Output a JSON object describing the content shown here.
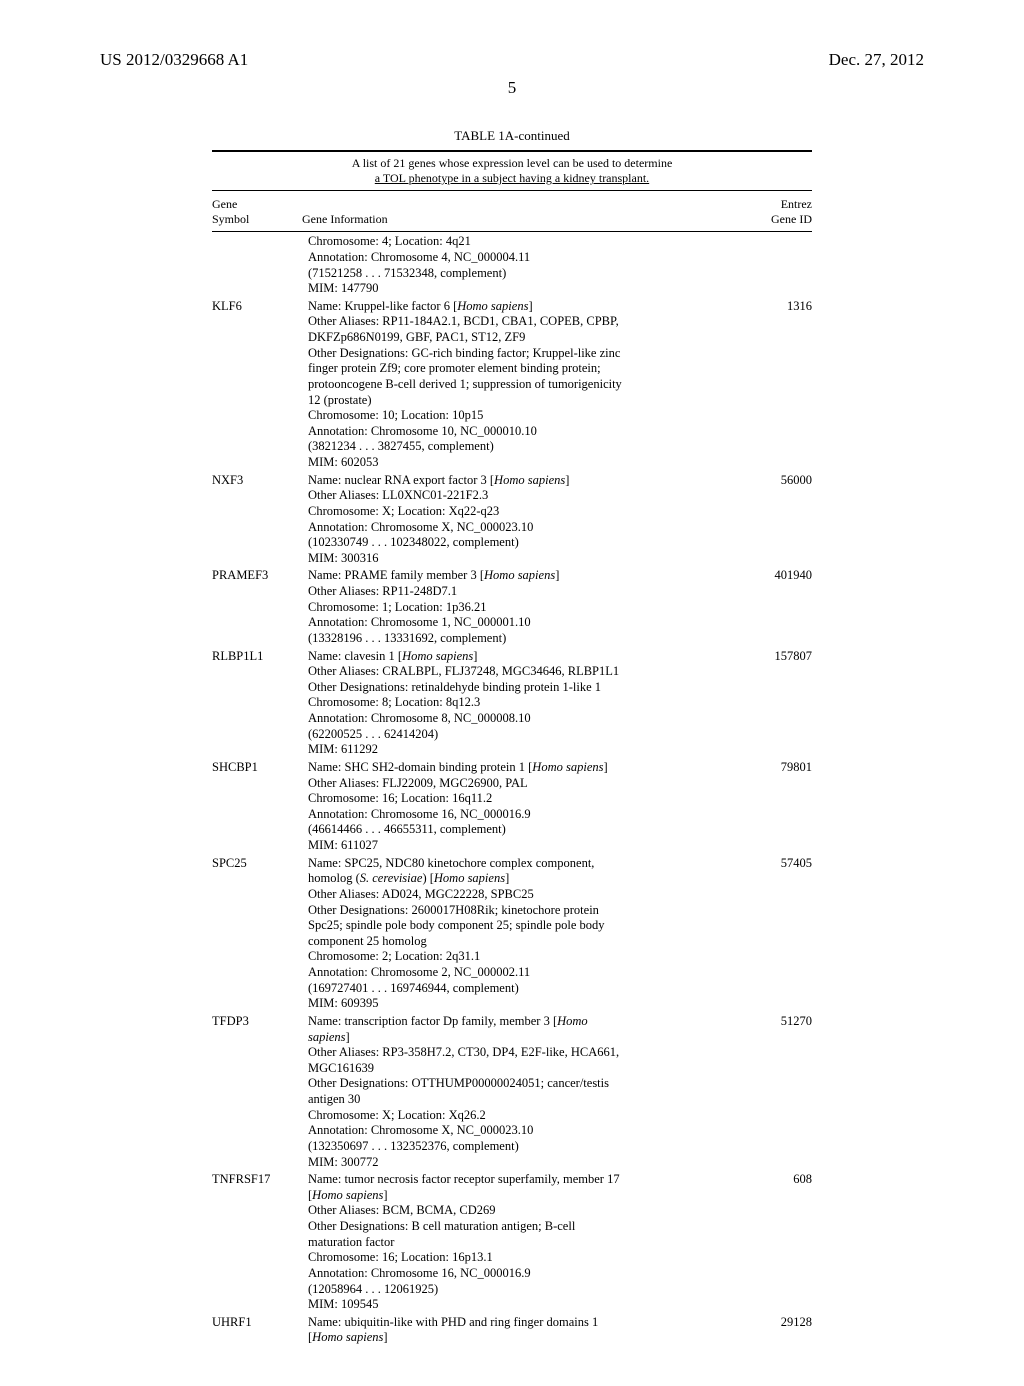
{
  "header": {
    "pub_number": "US 2012/0329668 A1",
    "pub_date": "Dec. 27, 2012",
    "page_number": "5"
  },
  "table": {
    "title": "TABLE 1A-continued",
    "caption_line1": "A list of 21 genes whose expression level can be used to determine",
    "caption_line2": "a TOL phenotype in a subject having a kidney transplant.",
    "col_gene_l1": "Gene",
    "col_gene_l2": "Symbol",
    "col_info": "Gene Information",
    "col_entrez_l1": "Entrez",
    "col_entrez_l2": "Gene ID",
    "rows": [
      {
        "symbol": "",
        "entrez": "",
        "info": [
          "Chromosome: 4; Location: 4q21",
          "Annotation: Chromosome 4, NC_000004.11",
          "(71521258 . . . 71532348, complement)",
          "MIM: 147790"
        ]
      },
      {
        "symbol": "KLF6",
        "entrez": "1316",
        "info": [
          "Name: Kruppel-like factor 6 [<i>Homo sapiens</i>]",
          "Other Aliases: RP11-184A2.1, BCD1, CBA1, COPEB, CPBP,",
          "DKFZp686N0199, GBF, PAC1, ST12, ZF9",
          "Other Designations: GC-rich binding factor; Kruppel-like zinc",
          "finger protein Zf9; core promoter element binding protein;",
          "protooncogene B-cell derived 1; suppression of tumorigenicity",
          "12 (prostate)",
          "Chromosome: 10; Location: 10p15",
          "Annotation: Chromosome 10, NC_000010.10",
          "(3821234 . . . 3827455, complement)",
          "MIM: 602053"
        ]
      },
      {
        "symbol": "NXF3",
        "entrez": "56000",
        "info": [
          "Name: nuclear RNA export factor 3 [<i>Homo sapiens</i>]",
          "Other Aliases: LL0XNC01-221F2.3",
          "Chromosome: X; Location: Xq22-q23",
          "Annotation: Chromosome X, NC_000023.10",
          "(102330749 . . . 102348022, complement)",
          "MIM: 300316"
        ]
      },
      {
        "symbol": "PRAMEF3",
        "entrez": "401940",
        "info": [
          "Name: PRAME family member 3 [<i>Homo sapiens</i>]",
          "Other Aliases: RP11-248D7.1",
          "Chromosome: 1; Location: 1p36.21",
          "Annotation: Chromosome 1, NC_000001.10",
          "(13328196 . . . 13331692, complement)"
        ]
      },
      {
        "symbol": "RLBP1L1",
        "entrez": "157807",
        "info": [
          "Name: clavesin 1 [<i>Homo sapiens</i>]",
          "Other Aliases: CRALBPL, FLJ37248, MGC34646, RLBP1L1",
          "Other Designations: retinaldehyde binding protein 1-like 1",
          "Chromosome: 8; Location: 8q12.3",
          "Annotation: Chromosome 8, NC_000008.10",
          "(62200525 . . . 62414204)",
          "MIM: 611292"
        ]
      },
      {
        "symbol": "SHCBP1",
        "entrez": "79801",
        "info": [
          "Name: SHC SH2-domain binding protein 1 [<i>Homo sapiens</i>]",
          "Other Aliases: FLJ22009, MGC26900, PAL",
          "Chromosome: 16; Location: 16q11.2",
          "Annotation: Chromosome 16, NC_000016.9",
          "(46614466 . . . 46655311, complement)",
          "MIM: 611027"
        ]
      },
      {
        "symbol": "SPC25",
        "entrez": "57405",
        "info": [
          "Name: SPC25, NDC80 kinetochore complex component,",
          "homolog (<i>S. cerevisiae</i>) [<i>Homo sapiens</i>]",
          "Other Aliases: AD024, MGC22228, SPBC25",
          "Other Designations: 2600017H08Rik; kinetochore protein",
          "Spc25; spindle pole body component 25; spindle pole body",
          "component 25 homolog",
          "Chromosome: 2; Location: 2q31.1",
          "Annotation: Chromosome 2, NC_000002.11",
          "(169727401 . . . 169746944, complement)",
          "MIM: 609395"
        ]
      },
      {
        "symbol": "TFDP3",
        "entrez": "51270",
        "info": [
          "Name: transcription factor Dp family, member 3 [<i>Homo</i>",
          "<i>sapiens</i>]",
          "Other Aliases: RP3-358H7.2, CT30, DP4, E2F-like, HCA661,",
          "MGC161639",
          "Other Designations: OTTHUMP00000024051; cancer/testis",
          "antigen 30",
          "Chromosome: X; Location: Xq26.2",
          "Annotation: Chromosome X, NC_000023.10",
          "(132350697 . . . 132352376, complement)",
          "MIM: 300772"
        ]
      },
      {
        "symbol": "TNFRSF17",
        "entrez": "608",
        "info": [
          "Name: tumor necrosis factor receptor superfamily, member 17",
          "[<i>Homo sapiens</i>]",
          "Other Aliases: BCM, BCMA, CD269",
          "Other Designations: B cell maturation antigen; B-cell",
          "maturation factor",
          "Chromosome: 16; Location: 16p13.1",
          "Annotation: Chromosome 16, NC_000016.9",
          "(12058964 . . . 12061925)",
          "MIM: 109545"
        ]
      },
      {
        "symbol": "UHRF1",
        "entrez": "29128",
        "info": [
          "Name: ubiquitin-like with PHD and ring finger domains 1",
          "[<i>Homo sapiens</i>]"
        ]
      }
    ]
  }
}
